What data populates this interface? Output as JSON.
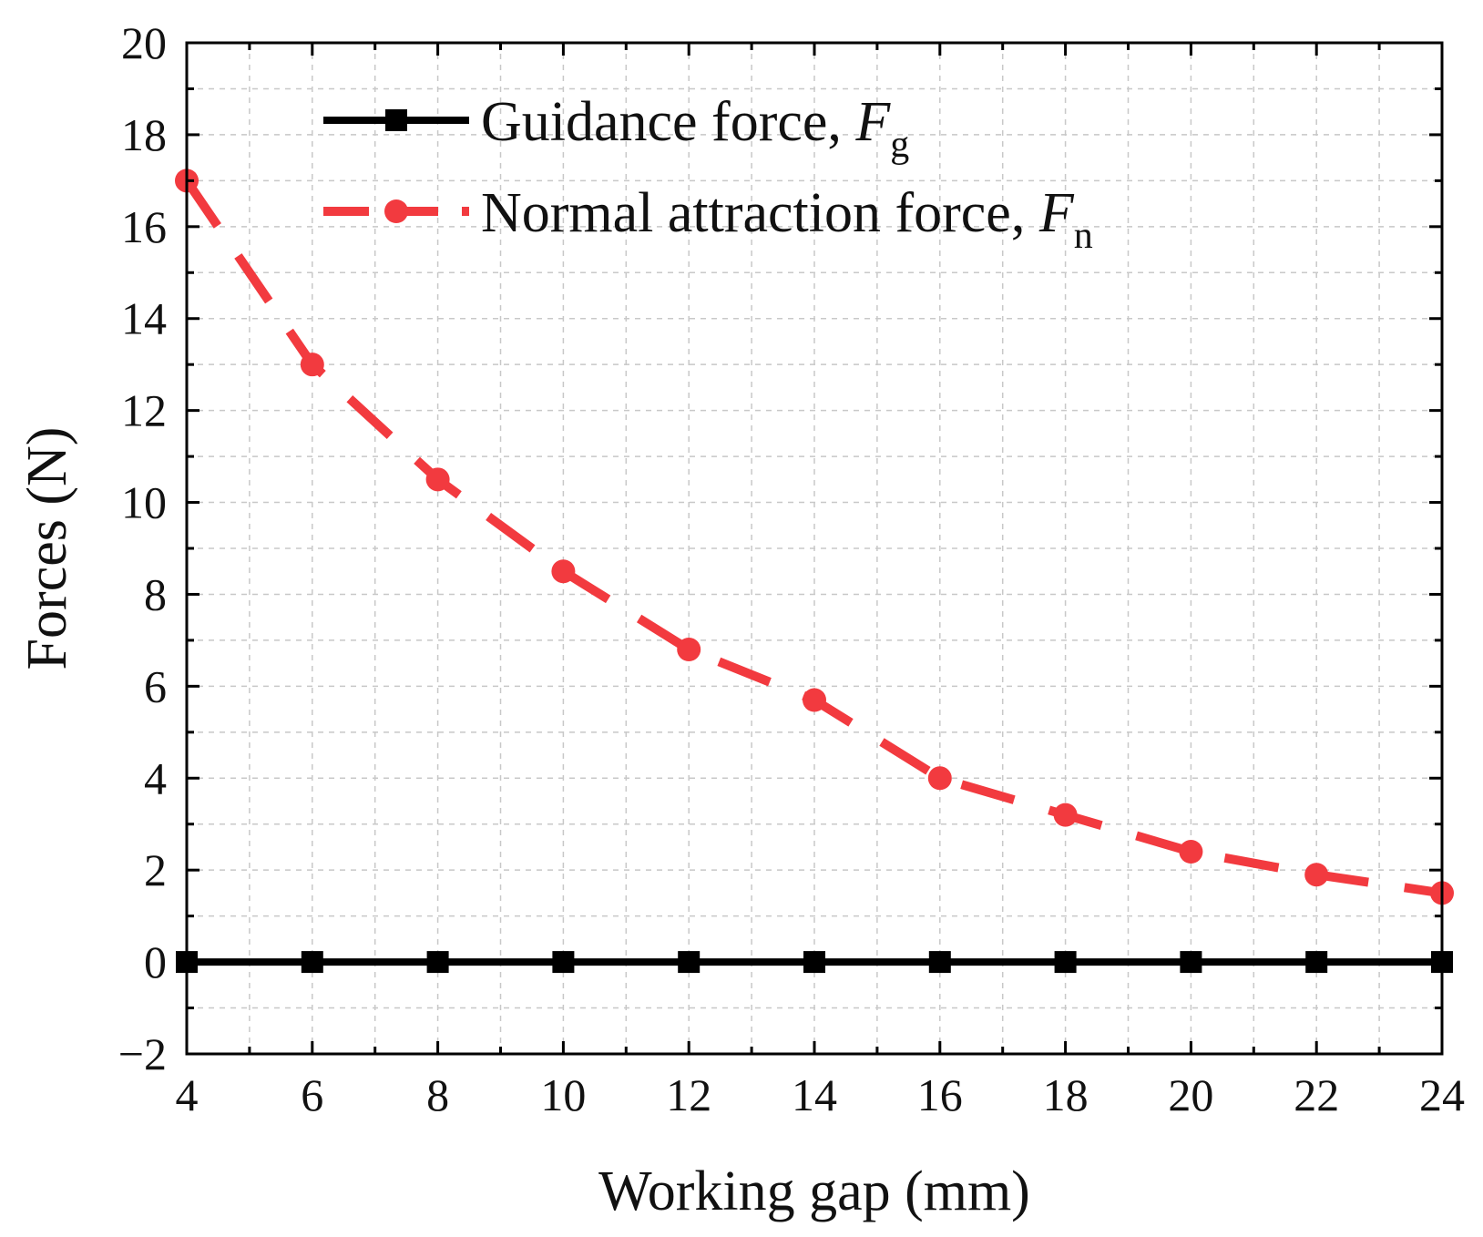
{
  "chart_data": {
    "type": "line",
    "title": "",
    "xlabel": "Working gap (mm)",
    "ylabel": "Forces (N)",
    "xlim": [
      4,
      24
    ],
    "ylim": [
      -2,
      20
    ],
    "xticks": [
      4,
      6,
      8,
      10,
      12,
      14,
      16,
      18,
      20,
      22,
      24
    ],
    "yticks": [
      -2,
      0,
      2,
      4,
      6,
      8,
      10,
      12,
      14,
      16,
      18,
      20
    ],
    "ytick_labels": [
      "−2",
      "0",
      "2",
      "4",
      "6",
      "8",
      "10",
      "12",
      "14",
      "16",
      "18",
      "20"
    ],
    "grid": true,
    "legend_position": "top-center",
    "x": [
      4,
      6,
      8,
      10,
      12,
      14,
      16,
      18,
      20,
      22,
      24
    ],
    "series": [
      {
        "name": "Guidance force, F g",
        "label_text": "Guidance force, ",
        "symbol": "F",
        "subscript": "g",
        "color": "#000000",
        "line_style": "solid",
        "marker": "square",
        "values": [
          0,
          0,
          0,
          0,
          0,
          0,
          0,
          0,
          0,
          0,
          0
        ]
      },
      {
        "name": "Normal attraction force, F n",
        "label_text": "Normal attraction force, ",
        "symbol": "F",
        "subscript": "n",
        "color": "#f23a3f",
        "line_style": "dashed",
        "marker": "circle",
        "values": [
          17.0,
          13.0,
          10.5,
          8.5,
          6.8,
          5.7,
          4.0,
          3.2,
          2.4,
          1.9,
          1.5
        ]
      }
    ]
  }
}
